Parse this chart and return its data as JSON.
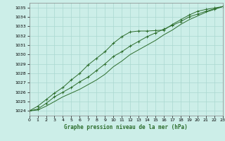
{
  "title": "Graphe pression niveau de la mer (hPa)",
  "background_color": "#cceee8",
  "grid_color": "#aad8d0",
  "line_color": "#2d6e2d",
  "xlim": [
    0,
    23
  ],
  "ylim": [
    1023.5,
    1035.5
  ],
  "xticks": [
    0,
    1,
    2,
    3,
    4,
    5,
    6,
    7,
    8,
    9,
    10,
    11,
    12,
    13,
    14,
    15,
    16,
    17,
    18,
    19,
    20,
    21,
    22,
    23
  ],
  "yticks": [
    1024,
    1025,
    1026,
    1027,
    1028,
    1029,
    1030,
    1031,
    1032,
    1033,
    1034,
    1035
  ],
  "series": [
    {
      "x": [
        0,
        1,
        2,
        3,
        4,
        5,
        6,
        7,
        8,
        9,
        10,
        11,
        12,
        13,
        14,
        15,
        16,
        17,
        18,
        19,
        20,
        21,
        22,
        23
      ],
      "y": [
        1024.0,
        1024.5,
        1025.2,
        1025.9,
        1026.5,
        1027.3,
        1028.0,
        1028.9,
        1029.6,
        1030.3,
        1031.2,
        1031.9,
        1032.4,
        1032.5,
        1032.5,
        1032.55,
        1032.6,
        1033.2,
        1033.7,
        1034.2,
        1034.6,
        1034.8,
        1034.95,
        1035.1
      ],
      "marker": "+"
    },
    {
      "x": [
        0,
        1,
        2,
        3,
        4,
        5,
        6,
        7,
        8,
        9,
        10,
        11,
        12,
        13,
        14,
        15,
        16,
        17,
        18,
        19,
        20,
        21,
        22,
        23
      ],
      "y": [
        1024.0,
        1024.2,
        1024.8,
        1025.5,
        1026.0,
        1026.5,
        1027.1,
        1027.6,
        1028.3,
        1029.0,
        1029.8,
        1030.3,
        1030.9,
        1031.4,
        1031.9,
        1032.3,
        1032.7,
        1033.1,
        1033.5,
        1034.0,
        1034.3,
        1034.6,
        1034.85,
        1035.1
      ],
      "marker": "+"
    },
    {
      "x": [
        0,
        1,
        2,
        3,
        4,
        5,
        6,
        7,
        8,
        9,
        10,
        11,
        12,
        13,
        14,
        15,
        16,
        17,
        18,
        19,
        20,
        21,
        22,
        23
      ],
      "y": [
        1024.0,
        1024.1,
        1024.5,
        1025.0,
        1025.5,
        1025.9,
        1026.3,
        1026.8,
        1027.3,
        1027.9,
        1028.7,
        1029.3,
        1030.0,
        1030.5,
        1031.0,
        1031.5,
        1032.1,
        1032.6,
        1033.2,
        1033.7,
        1034.1,
        1034.5,
        1034.8,
        1035.1
      ],
      "marker": null
    }
  ],
  "figsize": [
    3.2,
    2.0
  ],
  "dpi": 100
}
